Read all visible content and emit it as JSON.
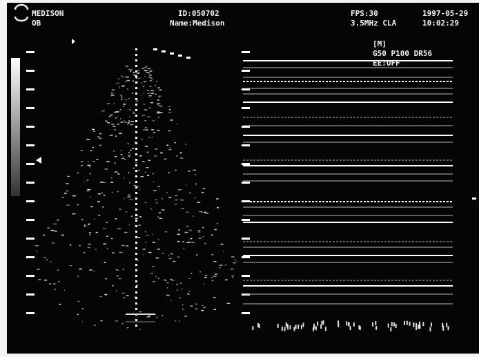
{
  "header": {
    "brand": "MEDISON",
    "preset": "OB",
    "id": "ID:050702",
    "name": "Name:Medison",
    "fps": "FPS:30",
    "probe": "3.5MHz CLA",
    "date": "1997-05-29",
    "time": "10:02:29"
  },
  "mode_panel": {
    "mode": "[M]",
    "settings": "G50  P100 DR56",
    "edge": "EE:OFF"
  }
}
